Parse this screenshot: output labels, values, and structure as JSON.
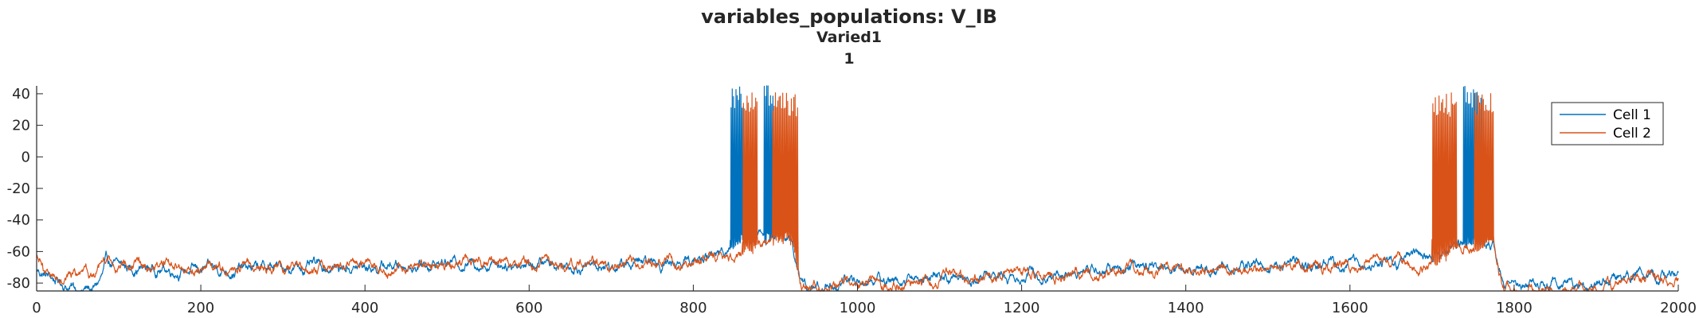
{
  "chart_data": {
    "type": "line",
    "title": "variables_populations: V_IB",
    "subtitle": "Varied1",
    "subtitle2": "1",
    "xlabel": "",
    "ylabel": "",
    "xlim": [
      0,
      2000
    ],
    "ylim": [
      -85,
      45
    ],
    "xticks": [
      0,
      200,
      400,
      600,
      800,
      1000,
      1200,
      1400,
      1600,
      1800,
      2000
    ],
    "yticks": [
      -80,
      -60,
      -40,
      -20,
      0,
      20,
      40
    ],
    "grid": false,
    "legend_position": "top-right",
    "series": [
      {
        "name": "Cell 1",
        "color": "#0072BD",
        "baseline": [
          [
            0,
            -72
          ],
          [
            30,
            -80
          ],
          [
            50,
            -84
          ],
          [
            70,
            -84
          ],
          [
            80,
            -76
          ],
          [
            85,
            -68
          ],
          [
            100,
            -70
          ],
          [
            200,
            -72
          ],
          [
            300,
            -70
          ],
          [
            400,
            -70
          ],
          [
            500,
            -67
          ],
          [
            600,
            -67
          ],
          [
            700,
            -69
          ],
          [
            800,
            -66
          ],
          [
            830,
            -62
          ],
          [
            845,
            -55
          ],
          [
            860,
            -52
          ],
          [
            880,
            -50
          ],
          [
            900,
            -50
          ],
          [
            920,
            -52
          ],
          [
            930,
            -80
          ],
          [
            940,
            -84
          ],
          [
            960,
            -82
          ],
          [
            1000,
            -78
          ],
          [
            1100,
            -77
          ],
          [
            1200,
            -75
          ],
          [
            1300,
            -72
          ],
          [
            1400,
            -70
          ],
          [
            1500,
            -69
          ],
          [
            1600,
            -69
          ],
          [
            1650,
            -67
          ],
          [
            1700,
            -63
          ],
          [
            1720,
            -58
          ],
          [
            1740,
            -55
          ],
          [
            1760,
            -54
          ],
          [
            1775,
            -55
          ],
          [
            1785,
            -78
          ],
          [
            1795,
            -83
          ],
          [
            1850,
            -81
          ],
          [
            1900,
            -79
          ],
          [
            1950,
            -76
          ],
          [
            2000,
            -74
          ]
        ],
        "burst_intervals": [
          [
            845,
            862
          ],
          [
            886,
            897
          ],
          [
            1738,
            1762
          ]
        ],
        "spike_peak": 38
      },
      {
        "name": "Cell 2",
        "color": "#D95319",
        "baseline": [
          [
            0,
            -63
          ],
          [
            10,
            -75
          ],
          [
            40,
            -74
          ],
          [
            70,
            -77
          ],
          [
            80,
            -72
          ],
          [
            88,
            -66
          ],
          [
            100,
            -69
          ],
          [
            200,
            -71
          ],
          [
            300,
            -71
          ],
          [
            400,
            -69
          ],
          [
            500,
            -68
          ],
          [
            600,
            -68
          ],
          [
            700,
            -69
          ],
          [
            800,
            -67
          ],
          [
            840,
            -62
          ],
          [
            860,
            -60
          ],
          [
            880,
            -54
          ],
          [
            900,
            -50
          ],
          [
            920,
            -51
          ],
          [
            930,
            -80
          ],
          [
            940,
            -84
          ],
          [
            980,
            -80
          ],
          [
            1000,
            -80
          ],
          [
            1100,
            -78
          ],
          [
            1200,
            -76
          ],
          [
            1300,
            -73
          ],
          [
            1400,
            -71
          ],
          [
            1500,
            -70
          ],
          [
            1600,
            -69
          ],
          [
            1650,
            -67
          ],
          [
            1700,
            -66
          ],
          [
            1720,
            -64
          ],
          [
            1740,
            -58
          ],
          [
            1760,
            -55
          ],
          [
            1775,
            -55
          ],
          [
            1785,
            -80
          ],
          [
            1795,
            -84
          ],
          [
            1850,
            -83
          ],
          [
            1900,
            -82
          ],
          [
            1950,
            -78
          ],
          [
            2000,
            -77
          ]
        ],
        "burst_intervals": [
          [
            860,
            878
          ],
          [
            897,
            928
          ],
          [
            1700,
            1730
          ],
          [
            1752,
            1775
          ]
        ],
        "spike_peak": 33
      }
    ]
  }
}
